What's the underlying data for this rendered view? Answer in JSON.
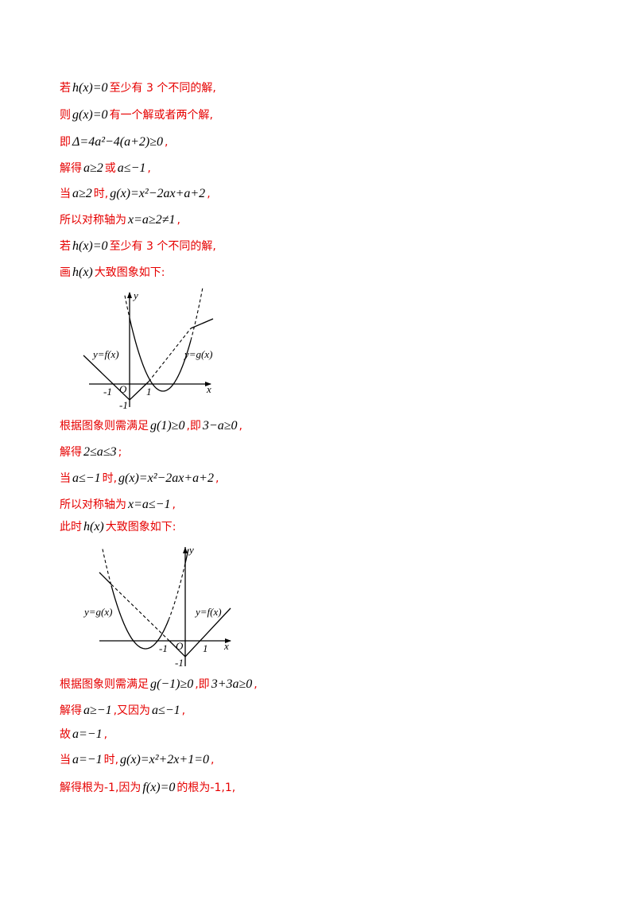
{
  "paragraphs": [
    [
      "若",
      "h(x)=0",
      "至少有 3 个不同的解,"
    ],
    [
      "则",
      "g(x)=0",
      "有一个解或者两个解,"
    ],
    [
      "即",
      "Δ=4a²−4(a+2)≥0",
      ","
    ],
    [
      "解得",
      "a≥2",
      "或",
      "a≤−1",
      ","
    ],
    [
      "当",
      "a≥2",
      "时,",
      "g(x)=x²−2ax+a+2",
      ","
    ],
    [
      "所以对称轴为",
      "x=a≥2≠1",
      ","
    ],
    [
      "若",
      "h(x)=0",
      "至少有 3 个不同的解,"
    ],
    [
      "画",
      "h(x)",
      "大致图象如下:"
    ],
    [
      "根据图象则需满足",
      "g(1)≥0",
      ",即",
      "3−a≥0",
      ","
    ],
    [
      "解得",
      "2≤a≤3",
      ";"
    ],
    [
      "当",
      "a≤−1",
      "时,",
      "g(x)=x²−2ax+a+2",
      ","
    ],
    [
      "所以对称轴为",
      "x=a≤−1",
      ","
    ],
    [
      "此时",
      "h(x)",
      "大致图象如下:"
    ],
    [
      "根据图象则需满足",
      "g(−1)≥0",
      ",即",
      "3+3a≥0",
      ","
    ],
    [
      "解得",
      "a≥−1",
      ",又因为",
      "a≤−1",
      ","
    ],
    [
      "故",
      "a=−1",
      ","
    ],
    [
      "当",
      "a=−1",
      "时,",
      "g(x)=x²+2x+1=0",
      ","
    ],
    [
      "解得根为-1,因为",
      "f(x)=0",
      "的根为-1,1,"
    ]
  ],
  "figures": [
    {
      "y_label": "y",
      "left_label": "y=f(x)",
      "right_label": "y=g(x)",
      "minus_one_x": "-1",
      "origin": "O",
      "one": "1",
      "x_label": "x",
      "minus_one_y": "-1"
    },
    {
      "y_label": "y",
      "left_label": "y=g(x)",
      "right_label": "y=f(x)",
      "minus_one_x": "-1",
      "origin": "O",
      "one": "1",
      "x_label": "x",
      "minus_one_y": "-1"
    }
  ]
}
